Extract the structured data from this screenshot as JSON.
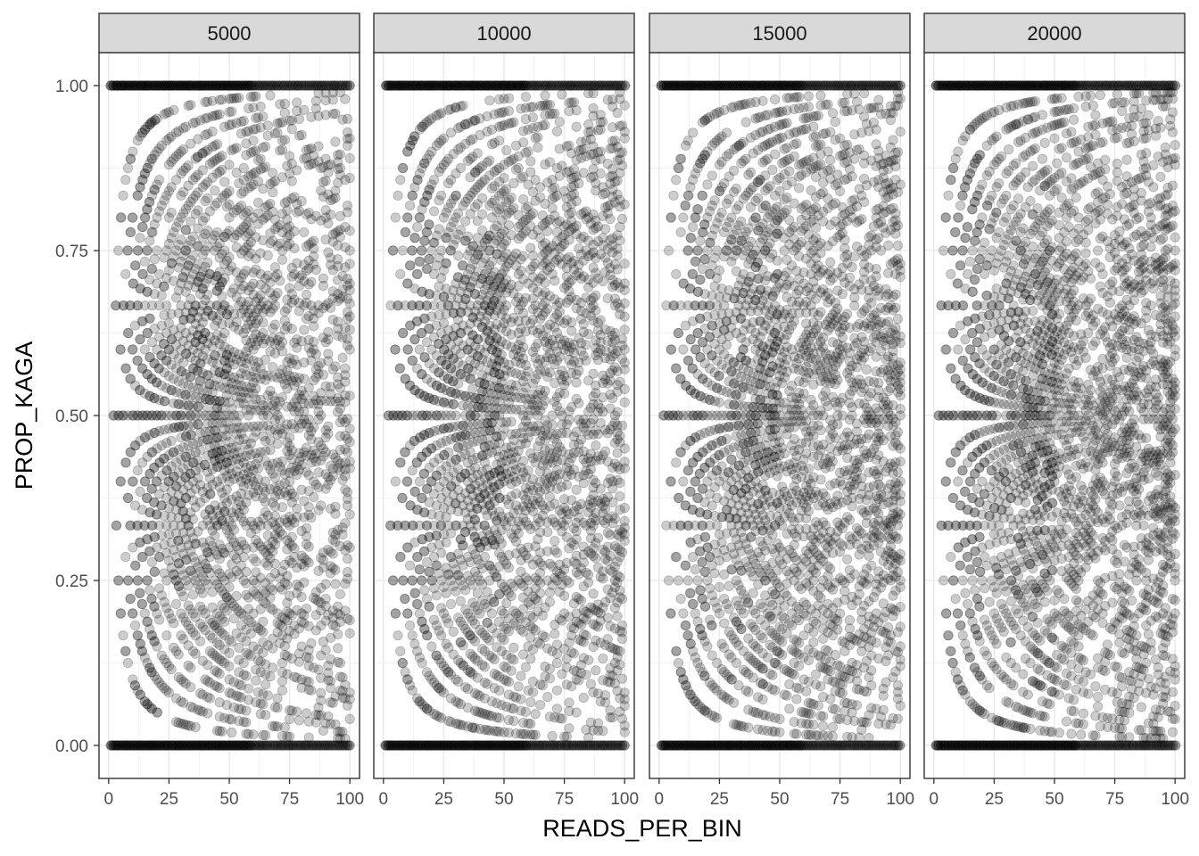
{
  "chart_data": {
    "type": "scatter",
    "facet_variable_values": [
      "5000",
      "10000",
      "15000",
      "20000"
    ],
    "xlabel": "READS_PER_BIN",
    "ylabel": "PROP_KAGA",
    "xlim": [
      -4,
      104
    ],
    "ylim": [
      -0.05,
      1.05
    ],
    "x_ticks": [
      0,
      25,
      50,
      75,
      100
    ],
    "x_tick_labels": [
      "0",
      "25",
      "50",
      "75",
      "100"
    ],
    "y_ticks": [
      0.0,
      0.25,
      0.5,
      0.75,
      1.0
    ],
    "y_tick_labels": [
      "0.00",
      "0.25",
      "0.50",
      "0.75",
      "1.00"
    ],
    "point_color": "#000000",
    "point_alpha": 0.2,
    "description_of_values": "Each point is a bin with READS_PER_BIN = n (1-100) and PROP_KAGA = k/n; points lie on curves k/n and (n-k)/n, with dense horizontal bands at 0, 1/3, 1/2, 2/3 and 1.",
    "grid": true,
    "theme": "bw"
  }
}
